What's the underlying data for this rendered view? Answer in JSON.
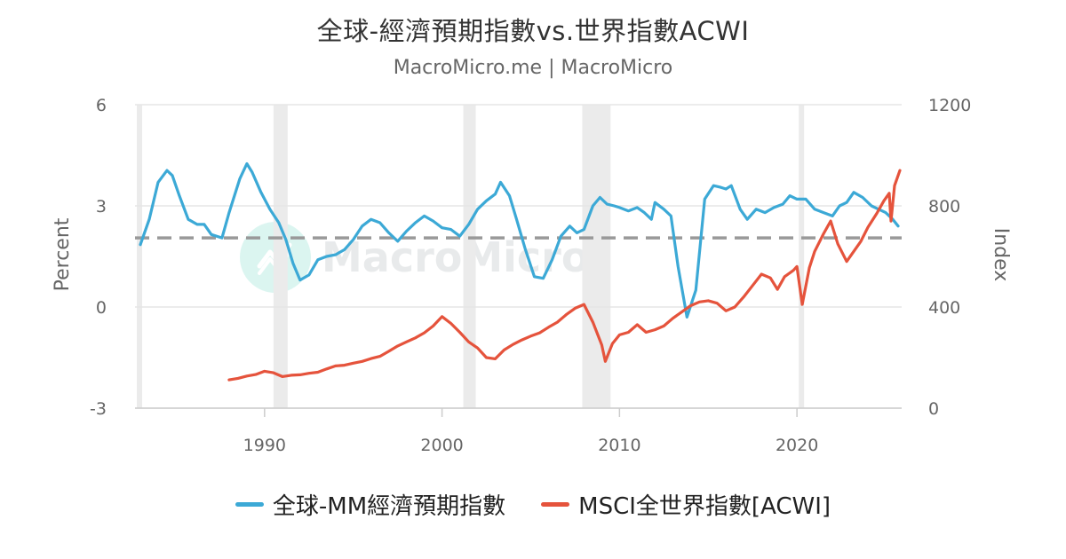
{
  "header": {
    "title": "全球-經濟預期指數vs.世界指數ACWI",
    "subtitle": "MacroMicro.me | MacroMicro"
  },
  "watermark": {
    "text": "MacroMicro"
  },
  "colors": {
    "series_blue": "#3ca9d6",
    "series_red": "#e5533c",
    "recession_band": "#ebebeb",
    "reference_line": "#999999",
    "grid": "#e6e6e6"
  },
  "chart_data": {
    "type": "line",
    "title": "全球-經濟預期指數vs.世界指數ACWI",
    "subtitle": "MacroMicro.me | MacroMicro",
    "x_ticks": [
      1990,
      2000,
      2010,
      2020
    ],
    "x_range": [
      1982.7,
      2025.9
    ],
    "y_left": {
      "label": "Percent",
      "range": [
        -3,
        6
      ],
      "ticks": [
        -3,
        0,
        3,
        6
      ]
    },
    "y_right": {
      "label": "Index",
      "range": [
        0,
        1200
      ],
      "ticks": [
        0,
        400,
        800,
        1200
      ]
    },
    "reference_line": {
      "axis": "left",
      "value": 2.05,
      "style": "dashed"
    },
    "recession_bands": [
      [
        1982.8,
        1983.1
      ],
      [
        1990.5,
        1991.3
      ],
      [
        2001.2,
        2001.9
      ],
      [
        2007.9,
        2009.5
      ],
      [
        2020.1,
        2020.4
      ]
    ],
    "legend_position": "bottom",
    "grid": true,
    "series": [
      {
        "name": "全球-MM經濟預期指數",
        "axis": "left",
        "color": "#3ca9d6",
        "points": [
          [
            1983.0,
            1.85
          ],
          [
            1983.5,
            2.6
          ],
          [
            1984.0,
            3.7
          ],
          [
            1984.5,
            4.05
          ],
          [
            1984.8,
            3.9
          ],
          [
            1985.2,
            3.3
          ],
          [
            1985.7,
            2.6
          ],
          [
            1986.2,
            2.45
          ],
          [
            1986.6,
            2.45
          ],
          [
            1987.0,
            2.15
          ],
          [
            1987.6,
            2.05
          ],
          [
            1988.0,
            2.8
          ],
          [
            1988.6,
            3.8
          ],
          [
            1989.0,
            4.25
          ],
          [
            1989.3,
            4.0
          ],
          [
            1989.8,
            3.4
          ],
          [
            1990.3,
            2.9
          ],
          [
            1990.8,
            2.5
          ],
          [
            1991.2,
            2.0
          ],
          [
            1991.6,
            1.3
          ],
          [
            1992.0,
            0.8
          ],
          [
            1992.5,
            0.95
          ],
          [
            1993.0,
            1.4
          ],
          [
            1993.5,
            1.5
          ],
          [
            1994.0,
            1.55
          ],
          [
            1994.5,
            1.7
          ],
          [
            1995.0,
            2.0
          ],
          [
            1995.5,
            2.4
          ],
          [
            1996.0,
            2.6
          ],
          [
            1996.5,
            2.5
          ],
          [
            1997.0,
            2.2
          ],
          [
            1997.5,
            1.95
          ],
          [
            1998.0,
            2.25
          ],
          [
            1998.5,
            2.5
          ],
          [
            1999.0,
            2.7
          ],
          [
            1999.5,
            2.55
          ],
          [
            2000.0,
            2.35
          ],
          [
            2000.5,
            2.3
          ],
          [
            2001.0,
            2.1
          ],
          [
            2001.5,
            2.45
          ],
          [
            2002.0,
            2.9
          ],
          [
            2002.5,
            3.15
          ],
          [
            2003.0,
            3.35
          ],
          [
            2003.3,
            3.7
          ],
          [
            2003.8,
            3.3
          ],
          [
            2004.2,
            2.6
          ],
          [
            2004.7,
            1.7
          ],
          [
            2005.2,
            0.9
          ],
          [
            2005.7,
            0.85
          ],
          [
            2006.2,
            1.4
          ],
          [
            2006.7,
            2.1
          ],
          [
            2007.2,
            2.4
          ],
          [
            2007.6,
            2.2
          ],
          [
            2008.0,
            2.3
          ],
          [
            2008.5,
            3.0
          ],
          [
            2008.9,
            3.25
          ],
          [
            2009.3,
            3.05
          ],
          [
            2009.7,
            3.0
          ],
          [
            2010.0,
            2.95
          ],
          [
            2010.5,
            2.85
          ],
          [
            2011.0,
            2.95
          ],
          [
            2011.4,
            2.8
          ],
          [
            2011.8,
            2.6
          ],
          [
            2012.0,
            3.1
          ],
          [
            2012.5,
            2.9
          ],
          [
            2012.9,
            2.7
          ],
          [
            2013.3,
            1.2
          ],
          [
            2013.8,
            -0.3
          ],
          [
            2014.3,
            0.5
          ],
          [
            2014.8,
            3.2
          ],
          [
            2015.3,
            3.6
          ],
          [
            2015.7,
            3.55
          ],
          [
            2016.0,
            3.5
          ],
          [
            2016.3,
            3.6
          ],
          [
            2016.8,
            2.9
          ],
          [
            2017.2,
            2.6
          ],
          [
            2017.7,
            2.9
          ],
          [
            2018.2,
            2.8
          ],
          [
            2018.7,
            2.95
          ],
          [
            2019.2,
            3.05
          ],
          [
            2019.6,
            3.3
          ],
          [
            2020.0,
            3.2
          ],
          [
            2020.5,
            3.2
          ],
          [
            2021.0,
            2.9
          ],
          [
            2021.5,
            2.8
          ],
          [
            2022.0,
            2.7
          ],
          [
            2022.4,
            3.0
          ],
          [
            2022.8,
            3.1
          ],
          [
            2023.2,
            3.4
          ],
          [
            2023.7,
            3.25
          ],
          [
            2024.2,
            3.0
          ],
          [
            2024.6,
            2.9
          ],
          [
            2025.0,
            2.8
          ],
          [
            2025.4,
            2.6
          ],
          [
            2025.7,
            2.4
          ]
        ]
      },
      {
        "name": "MSCI全世界指數[ACWI]",
        "axis": "right",
        "color": "#e5533c",
        "points": [
          [
            1988.0,
            112
          ],
          [
            1988.5,
            118
          ],
          [
            1989.0,
            127
          ],
          [
            1989.5,
            133
          ],
          [
            1990.0,
            146
          ],
          [
            1990.5,
            140
          ],
          [
            1991.0,
            125
          ],
          [
            1991.5,
            130
          ],
          [
            1992.0,
            132
          ],
          [
            1992.5,
            138
          ],
          [
            1993.0,
            142
          ],
          [
            1993.5,
            155
          ],
          [
            1994.0,
            167
          ],
          [
            1994.5,
            170
          ],
          [
            1995.0,
            178
          ],
          [
            1995.5,
            185
          ],
          [
            1996.0,
            196
          ],
          [
            1996.5,
            205
          ],
          [
            1997.0,
            225
          ],
          [
            1997.5,
            246
          ],
          [
            1998.0,
            262
          ],
          [
            1998.5,
            278
          ],
          [
            1999.0,
            298
          ],
          [
            1999.5,
            325
          ],
          [
            2000.0,
            362
          ],
          [
            2000.5,
            335
          ],
          [
            2001.0,
            300
          ],
          [
            2001.5,
            262
          ],
          [
            2002.0,
            238
          ],
          [
            2002.5,
            200
          ],
          [
            2003.0,
            195
          ],
          [
            2003.5,
            230
          ],
          [
            2004.0,
            252
          ],
          [
            2004.5,
            270
          ],
          [
            2005.0,
            285
          ],
          [
            2005.5,
            298
          ],
          [
            2006.0,
            320
          ],
          [
            2006.5,
            340
          ],
          [
            2007.0,
            370
          ],
          [
            2007.5,
            395
          ],
          [
            2008.0,
            410
          ],
          [
            2008.5,
            340
          ],
          [
            2009.0,
            250
          ],
          [
            2009.2,
            185
          ],
          [
            2009.6,
            255
          ],
          [
            2010.0,
            290
          ],
          [
            2010.5,
            300
          ],
          [
            2011.0,
            330
          ],
          [
            2011.5,
            300
          ],
          [
            2012.0,
            310
          ],
          [
            2012.5,
            325
          ],
          [
            2013.0,
            355
          ],
          [
            2013.5,
            380
          ],
          [
            2014.0,
            405
          ],
          [
            2014.5,
            420
          ],
          [
            2015.0,
            425
          ],
          [
            2015.5,
            415
          ],
          [
            2016.0,
            385
          ],
          [
            2016.5,
            400
          ],
          [
            2017.0,
            440
          ],
          [
            2017.5,
            485
          ],
          [
            2018.0,
            530
          ],
          [
            2018.5,
            515
          ],
          [
            2018.9,
            470
          ],
          [
            2019.3,
            520
          ],
          [
            2019.8,
            545
          ],
          [
            2020.0,
            560
          ],
          [
            2020.3,
            410
          ],
          [
            2020.7,
            555
          ],
          [
            2021.0,
            620
          ],
          [
            2021.5,
            690
          ],
          [
            2021.9,
            740
          ],
          [
            2022.3,
            650
          ],
          [
            2022.8,
            580
          ],
          [
            2023.2,
            620
          ],
          [
            2023.6,
            660
          ],
          [
            2024.0,
            715
          ],
          [
            2024.5,
            770
          ],
          [
            2024.9,
            820
          ],
          [
            2025.2,
            850
          ],
          [
            2025.3,
            740
          ],
          [
            2025.5,
            880
          ],
          [
            2025.8,
            940
          ]
        ]
      }
    ]
  }
}
